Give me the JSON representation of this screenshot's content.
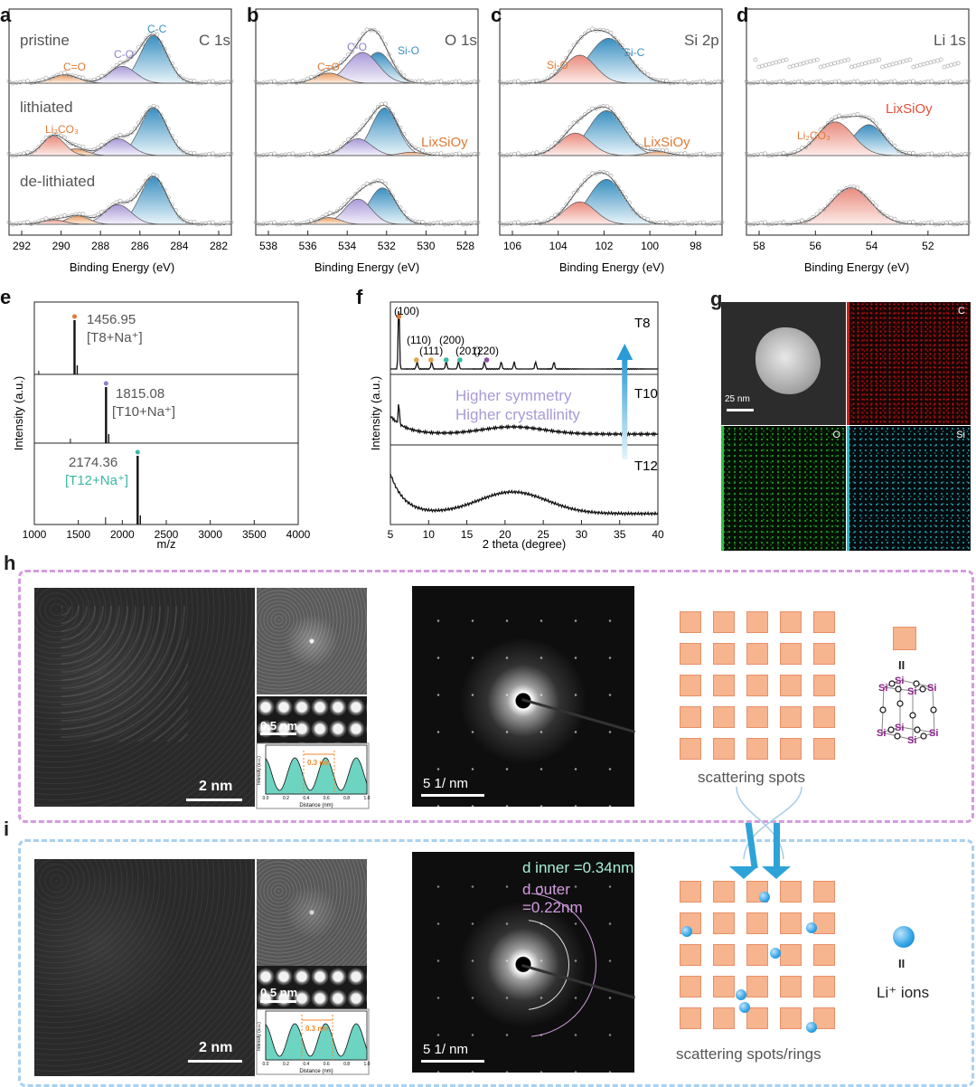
{
  "panels": {
    "a": {
      "letter": "a",
      "element": "C 1s",
      "xlabel": "Binding Energy (eV)",
      "ticks": [
        "292",
        "290",
        "288",
        "286",
        "284",
        "282"
      ],
      "rows": [
        "pristine",
        "lithiated",
        "de-lithiated"
      ],
      "peaks": [
        "C-C",
        "C-O",
        "C=O",
        "Li₂CO₃"
      ]
    },
    "b": {
      "letter": "b",
      "element": "O 1s",
      "xlabel": "Binding Energy (eV)",
      "ticks": [
        "538",
        "536",
        "534",
        "532",
        "530",
        "528"
      ],
      "peaks": [
        "C-O",
        "Si-O",
        "C=O",
        "LixSiOy"
      ]
    },
    "c": {
      "letter": "c",
      "element": "Si 2p",
      "xlabel": "Binding Energy (eV)",
      "ticks": [
        "106",
        "104",
        "102",
        "100",
        "98"
      ],
      "peaks": [
        "Si-O",
        "Si-C",
        "LixSiOy"
      ]
    },
    "d": {
      "letter": "d",
      "element": "Li 1s",
      "xlabel": "Binding Energy (eV)",
      "ticks": [
        "58",
        "56",
        "54",
        "52"
      ],
      "peaks": [
        "Li₂CO₃",
        "LixSiOy"
      ]
    },
    "e": {
      "letter": "e",
      "xlabel": "m/z",
      "ylabel": "Intensity (a.u.)",
      "ticks": [
        "1000",
        "1500",
        "2000",
        "2500",
        "3000",
        "3500",
        "4000"
      ],
      "peaks": [
        {
          "mass": "1456.95",
          "ion": "[T8+Na⁺]",
          "color": "#e07a35"
        },
        {
          "mass": "1815.08",
          "ion": "[T10+Na⁺]",
          "color": "#8c7fc9"
        },
        {
          "mass": "2174.36",
          "ion": "[T12+Na⁺]",
          "color": "#3bb8a6"
        }
      ]
    },
    "f": {
      "letter": "f",
      "xlabel": "2 theta (degree)",
      "ylabel": "Intensity (a.u.)",
      "ticks": [
        "5",
        "10",
        "15",
        "20",
        "25",
        "30",
        "35",
        "40"
      ],
      "samples": [
        "T8",
        "T10",
        "T12"
      ],
      "reflections": [
        "(100)",
        "(110)",
        "(111)",
        "(200)",
        "(201)",
        "(220)"
      ],
      "annotation1": "Higher symmetry",
      "annotation2": "Higher crystallinity"
    },
    "g": {
      "letter": "g",
      "scale": "25 nm",
      "maps": [
        "C",
        "O",
        "Si"
      ]
    },
    "h": {
      "letter": "h",
      "scale_img": "2 nm",
      "scale_fft": "0.5 nm",
      "profile_label": "0.3 nm",
      "profile_xlabel": "Distance (nm)",
      "profile_ylabel": "Intensity (a.u.)",
      "profile_ticks": [
        "0.0",
        "0.2",
        "0.4",
        "0.6",
        "0.8",
        "1.0"
      ],
      "saed_scale": "5 1/ nm",
      "schematic_label": "scattering spots",
      "equals": "II"
    },
    "i": {
      "letter": "i",
      "scale_img": "2 nm",
      "scale_fft": "0.5 nm",
      "profile_label": "0.3 nm",
      "profile_xlabel": "Distance (nm)",
      "profile_ylabel": "Intensity (a.u.)",
      "profile_ticks": [
        "0.0",
        "0.2",
        "0.4",
        "0.6",
        "0.8",
        "1.0"
      ],
      "saed_scale": "5 1/ nm",
      "d_inner": "d inner =0.34nm",
      "d_outer": "d outer =0.22nm",
      "schematic_label": "scattering spots/rings",
      "ion_label": "Li⁺ ions",
      "equals": "II"
    }
  },
  "colors": {
    "orange": "#e8935a",
    "purple": "#a89ad6",
    "blue": "#4aa3c8",
    "teal": "#3bb8a6",
    "pink_box": "#d59be0",
    "blue_box": "#a9d0ee",
    "square": "#f6b48f"
  }
}
